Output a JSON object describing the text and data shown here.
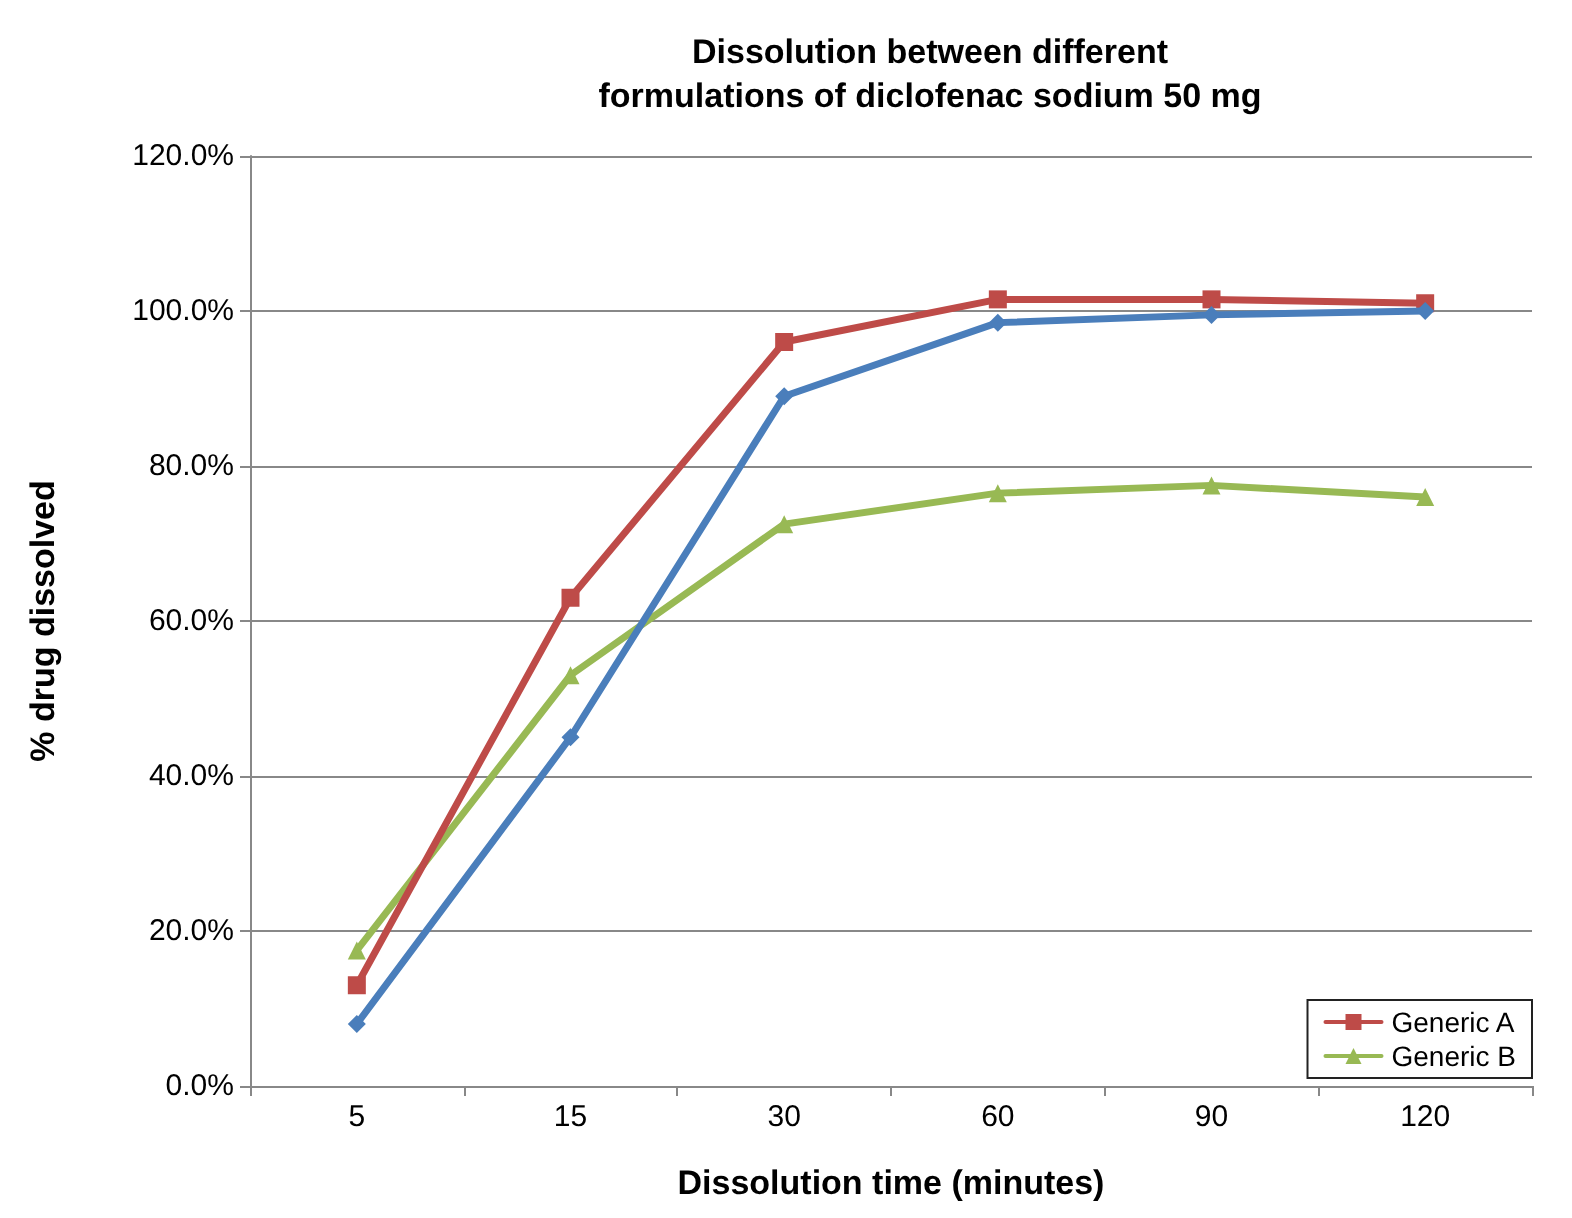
{
  "chart_data": {
    "type": "line",
    "title": "Dissolution between different\nformulations of diclofenac sodium 50 mg",
    "xlabel": "Dissolution time (minutes)",
    "ylabel": "% drug dissolved",
    "categories": [
      "5",
      "15",
      "30",
      "60",
      "90",
      "120"
    ],
    "series": [
      {
        "color": "#4a7ebb",
        "marker": "diamond",
        "values": [
          8,
          45,
          89,
          98.5,
          99.5,
          100
        ]
      },
      {
        "name": "Generic A",
        "color": "#be4b48",
        "marker": "square",
        "values": [
          13,
          63,
          96,
          101.5,
          101.5,
          101
        ]
      },
      {
        "name": "Generic B",
        "color": "#98b954",
        "marker": "triangle",
        "values": [
          17.5,
          53,
          72.5,
          76.5,
          77.5,
          76
        ]
      }
    ],
    "ylim": [
      0,
      120
    ],
    "yticks": [
      {
        "value": 0,
        "label": "0.0%"
      },
      {
        "value": 20,
        "label": "20.0%"
      },
      {
        "value": 40,
        "label": "40.0%"
      },
      {
        "value": 60,
        "label": "60.0%"
      },
      {
        "value": 80,
        "label": "80.0%"
      },
      {
        "value": 100,
        "label": "100.0%"
      },
      {
        "value": 120,
        "label": "120.0%"
      }
    ],
    "grid": "y",
    "legend": "bottom right",
    "line_style": "solid"
  }
}
